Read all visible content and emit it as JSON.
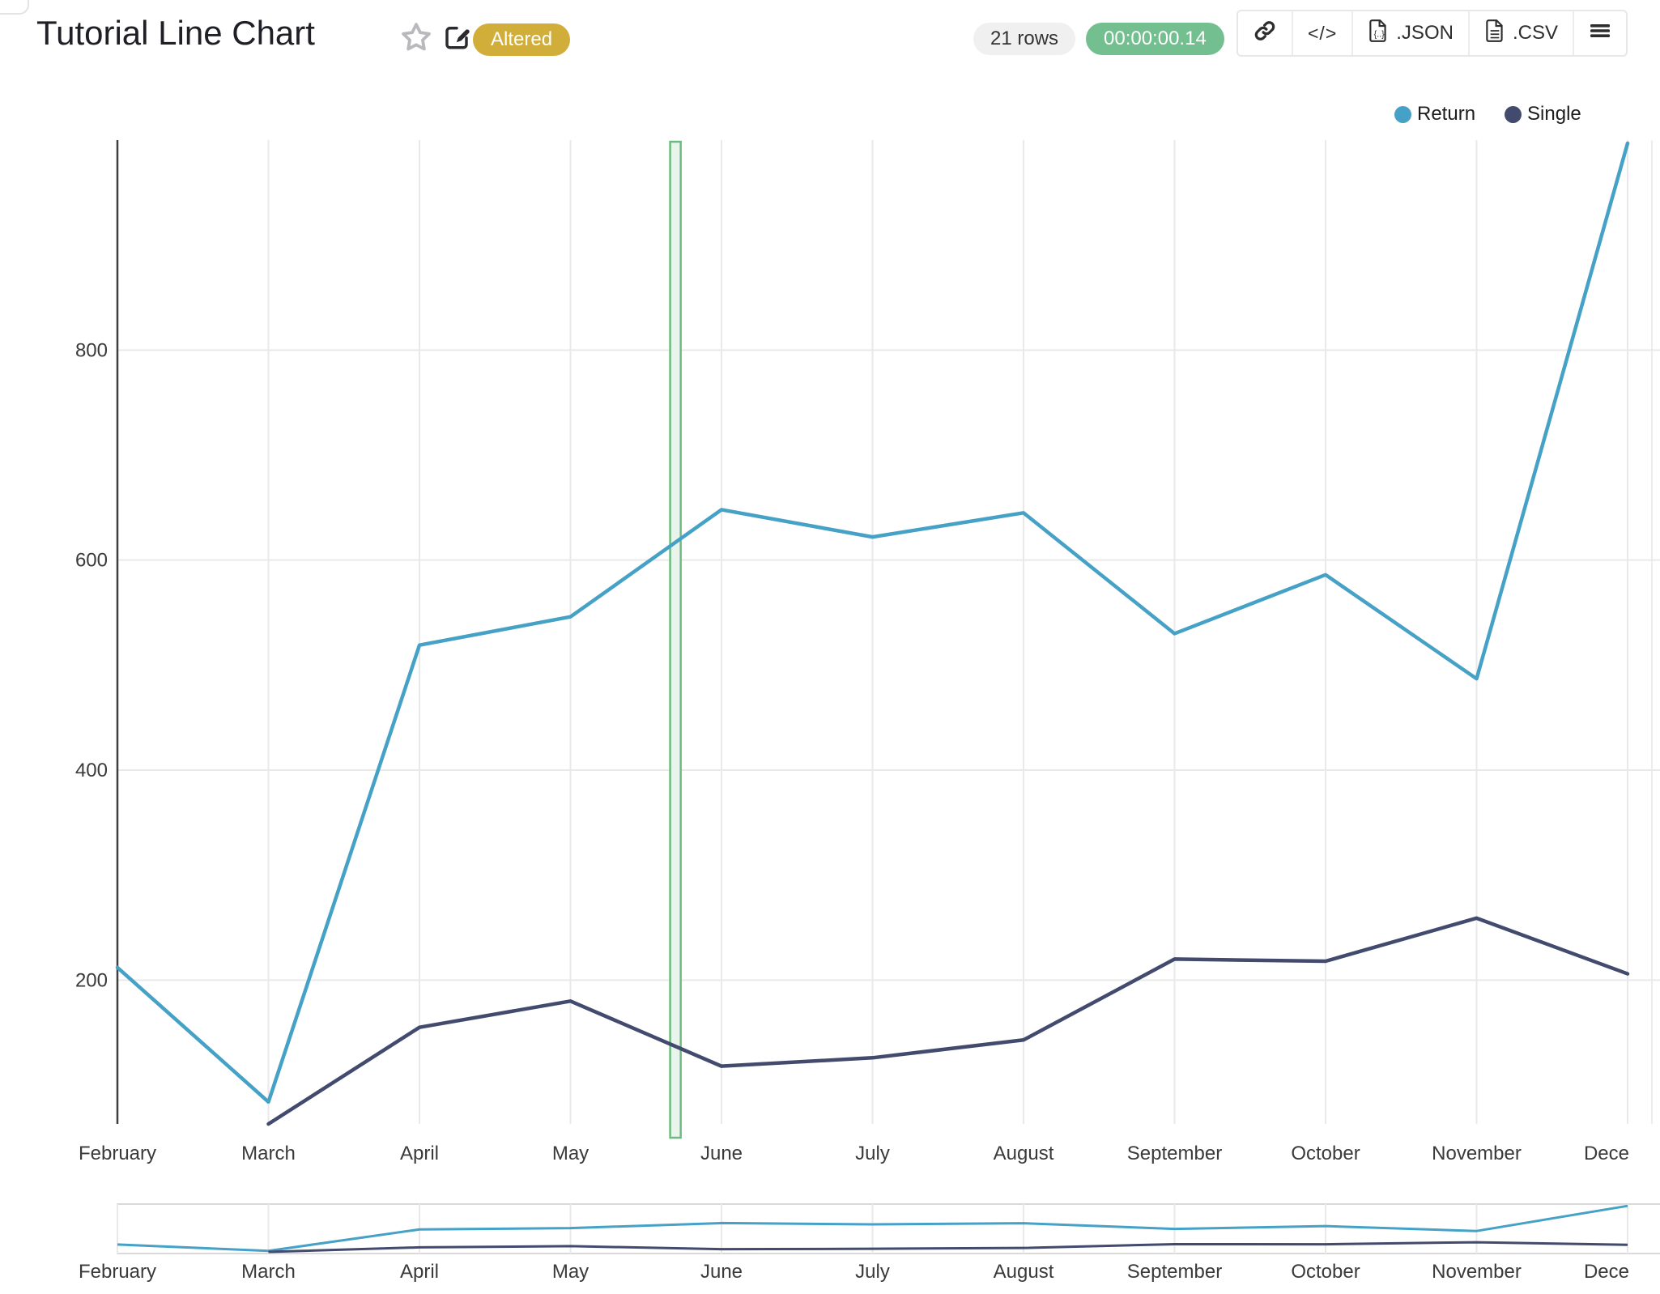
{
  "header": {
    "title": "Tutorial Line Chart",
    "altered_badge": "Altered",
    "rows_badge": "21 rows",
    "runtime_badge": "00:00:00.14",
    "embed_code_glyph": "</>",
    "export_json_label": ".JSON",
    "export_csv_label": ".CSV"
  },
  "chart_data": {
    "type": "line",
    "title": "Tutorial Line Chart",
    "categories": [
      "February",
      "March",
      "April",
      "May",
      "June",
      "July",
      "August",
      "September",
      "October",
      "November",
      "December"
    ],
    "x_tick_labels": [
      "February",
      "March",
      "April",
      "May",
      "June",
      "July",
      "August",
      "September",
      "October",
      "November",
      "Dece"
    ],
    "series": [
      {
        "name": "Return",
        "color": "#46a1c6",
        "values": [
          212,
          84,
          519,
          546,
          648,
          622,
          645,
          530,
          586,
          487,
          997
        ]
      },
      {
        "name": "Single",
        "color": "#424a6e",
        "values": [
          null,
          63,
          155,
          180,
          118,
          126,
          143,
          220,
          218,
          259,
          206
        ]
      }
    ],
    "yticks": [
      200,
      400,
      600,
      800
    ],
    "ylim": [
      63,
      1000
    ],
    "grid": true,
    "legend_position": "top-right",
    "highlight_band": {
      "x_index_start": 3.66,
      "x_index_end": 3.73,
      "fill": "#e9f4ec",
      "border": "#6cbc80"
    },
    "range_slider": true,
    "grid_color": "#e9e9e9",
    "axis_color": "#3f3f3f",
    "tick_text_color": "#3a3a3a"
  }
}
